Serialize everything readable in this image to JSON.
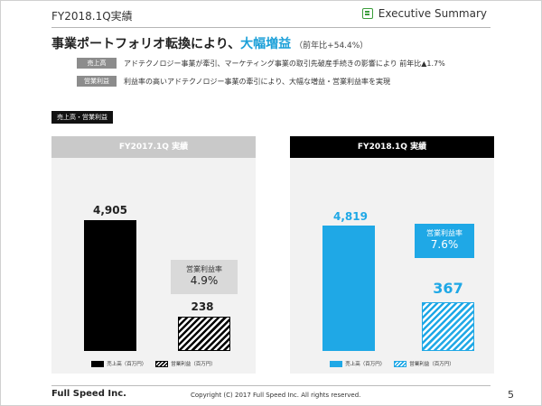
{
  "header": {
    "title": "FY2018.1Q実績",
    "exec_label": "Executive Summary",
    "exec_icon": "checklist-icon",
    "accent_color": "#3a9d3a"
  },
  "headline": {
    "prefix": "事業ポートフォリオ転換により、",
    "highlight": "大幅増益",
    "paren": "（前年比+54.4%）",
    "highlight_color": "#1a9fd8"
  },
  "notes": [
    {
      "tag": "売上高",
      "text": "アドテクノロジー事業が牽引、マーケティング事業の取引先破産手続きの影響により  前年比▲1.7%"
    },
    {
      "tag": "営業利益",
      "text": "利益率の高いアドテクノロジー事業の牽引により、大幅な増益・営業利益率を実現"
    }
  ],
  "section_tag": "売上高・営業利益",
  "chart_data": [
    {
      "type": "bar",
      "title": "FY2017.1Q  実績",
      "categories": [
        "売上高（百万円）",
        "営業利益（百万円）"
      ],
      "values": [
        4905,
        238
      ],
      "value_labels": [
        "4,905",
        "238"
      ],
      "margin_label": "営業利益率",
      "margin_value": "4.9%",
      "colors": {
        "sales": "#000000",
        "profit": "#000000",
        "header": "#c9c9c9"
      },
      "legend": [
        "売上高（百万円）",
        "営業利益（百万円）"
      ]
    },
    {
      "type": "bar",
      "title": "FY2018.1Q  実績",
      "categories": [
        "売上高（百万円）",
        "営業利益（百万円）"
      ],
      "values": [
        4819,
        367
      ],
      "value_labels": [
        "4,819",
        "367"
      ],
      "margin_label": "営業利益率",
      "margin_value": "7.6%",
      "colors": {
        "sales": "#1fa8e6",
        "profit": "#1fa8e6",
        "header": "#000000"
      },
      "legend": [
        "売上高（百万円）",
        "営業利益（百万円）"
      ]
    }
  ],
  "footer": {
    "company": "Full Speed Inc.",
    "copyright": "Copyright (C) 2017 Full Speed Inc. All rights reserved.",
    "page": "5"
  }
}
